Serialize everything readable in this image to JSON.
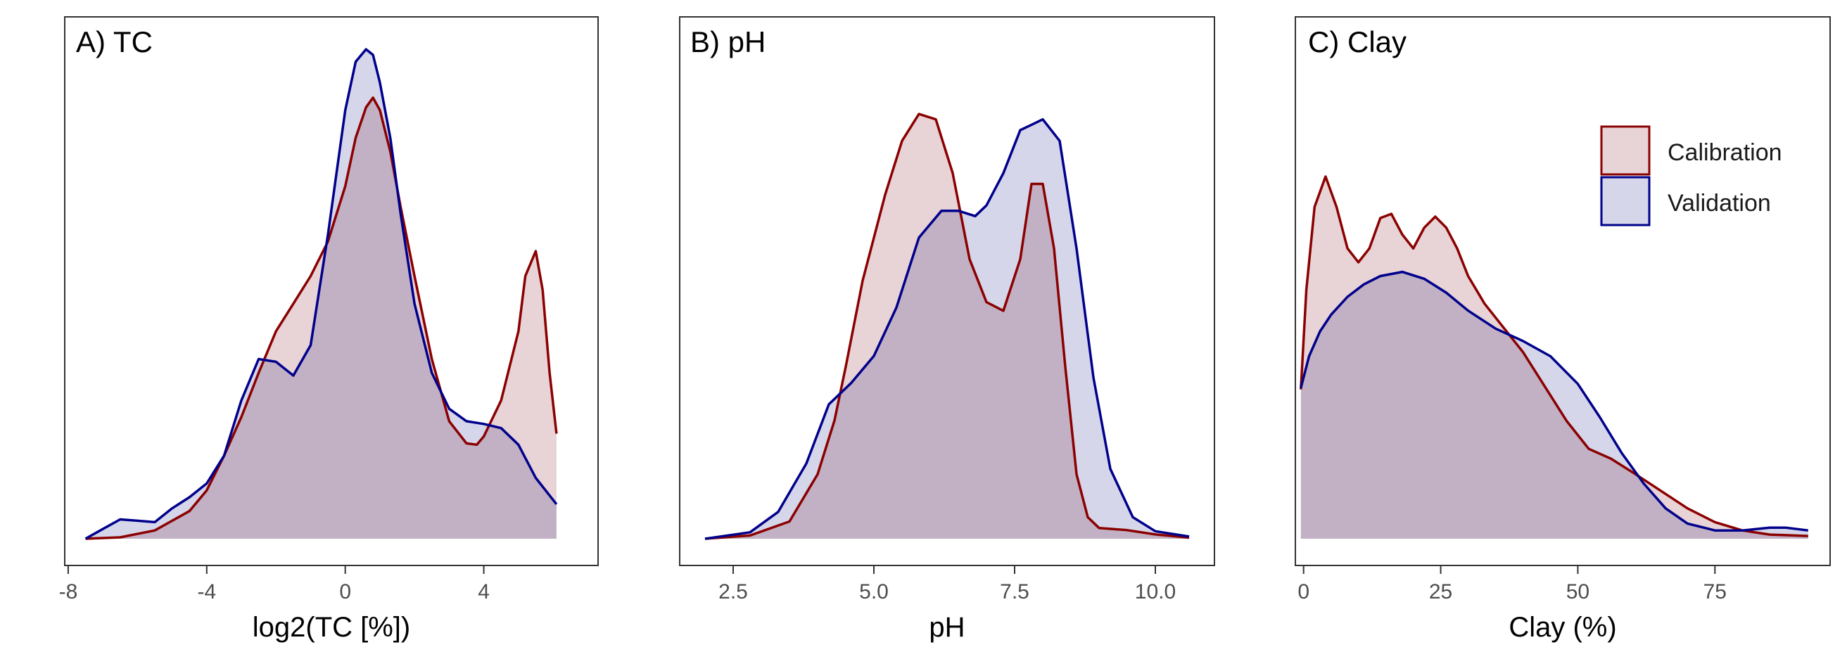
{
  "colors": {
    "calibration_line": "#8B0000",
    "calibration_fill": "#E8D3D6",
    "validation_line": "#00008B",
    "validation_fill": "#D5D6EA",
    "overlap_fill": "#C8B6CB",
    "panel_border": "#333333",
    "tick_text": "#4d4d4d"
  },
  "legend": {
    "placement": "top-right of panel C",
    "items": [
      {
        "label": "Calibration",
        "color_key": "calibration"
      },
      {
        "label": "Validation",
        "color_key": "validation"
      }
    ]
  },
  "chart_data": [
    {
      "type": "area",
      "title": "A) TC",
      "xlabel": "log2(TC [%])",
      "ylabel": "",
      "xlim": [
        -8.1,
        7.3
      ],
      "ylim": [
        0,
        0.35
      ],
      "xticks": [
        -8,
        -4,
        0,
        4
      ],
      "xtick_labels": [
        "-8",
        "-4",
        "0",
        "4"
      ],
      "grid": false,
      "series": [
        {
          "name": "Calibration",
          "x": [
            -7.5,
            -6.5,
            -5.5,
            -4.5,
            -4,
            -3.5,
            -3,
            -2.5,
            -2,
            -1.5,
            -1,
            -0.5,
            0,
            0.3,
            0.6,
            0.8,
            1,
            1.3,
            1.6,
            2,
            2.5,
            3,
            3.5,
            3.8,
            4,
            4.5,
            5,
            5.2,
            5.5,
            5.7,
            5.9,
            6.1
          ],
          "y": [
            0,
            0.001,
            0.006,
            0.02,
            0.035,
            0.06,
            0.088,
            0.12,
            0.15,
            0.17,
            0.19,
            0.215,
            0.255,
            0.29,
            0.312,
            0.319,
            0.31,
            0.28,
            0.24,
            0.19,
            0.13,
            0.085,
            0.069,
            0.068,
            0.074,
            0.1,
            0.15,
            0.19,
            0.208,
            0.18,
            0.12,
            0.076
          ]
        },
        {
          "name": "Validation",
          "x": [
            -7.5,
            -7,
            -6.5,
            -6,
            -5.5,
            -5,
            -4.5,
            -4,
            -3.5,
            -3,
            -2.5,
            -2,
            -1.5,
            -1,
            -0.5,
            0,
            0.3,
            0.6,
            0.8,
            1,
            1.3,
            1.6,
            2,
            2.5,
            3,
            3.5,
            4,
            4.5,
            5,
            5.5,
            6.1
          ],
          "y": [
            0,
            0.007,
            0.014,
            0.013,
            0.012,
            0.022,
            0.03,
            0.04,
            0.06,
            0.1,
            0.13,
            0.128,
            0.118,
            0.14,
            0.22,
            0.31,
            0.345,
            0.354,
            0.35,
            0.33,
            0.29,
            0.235,
            0.17,
            0.12,
            0.094,
            0.085,
            0.083,
            0.08,
            0.068,
            0.044,
            0.025
          ]
        }
      ]
    },
    {
      "type": "area",
      "title": "B) pH",
      "xlabel": "pH",
      "ylabel": "",
      "xlim": [
        1.55,
        11.05
      ],
      "ylim": [
        0,
        0.45
      ],
      "xticks": [
        2.5,
        5.0,
        7.5,
        10.0
      ],
      "xtick_labels": [
        "2.5",
        "5.0",
        "7.5",
        "10.0"
      ],
      "grid": false,
      "series": [
        {
          "name": "Calibration",
          "x": [
            2,
            2.8,
            3.5,
            4,
            4.3,
            4.5,
            4.8,
            5.2,
            5.5,
            5.8,
            6.1,
            6.4,
            6.7,
            7,
            7.3,
            7.6,
            7.8,
            8,
            8.2,
            8.4,
            8.6,
            8.8,
            9,
            9.5,
            10,
            10.6
          ],
          "y": [
            0,
            0.003,
            0.016,
            0.06,
            0.11,
            0.16,
            0.24,
            0.32,
            0.37,
            0.395,
            0.39,
            0.34,
            0.26,
            0.22,
            0.212,
            0.26,
            0.33,
            0.33,
            0.27,
            0.16,
            0.06,
            0.02,
            0.01,
            0.008,
            0.004,
            0.001
          ]
        },
        {
          "name": "Validation",
          "x": [
            2,
            2.8,
            3.3,
            3.8,
            4.2,
            4.6,
            5,
            5.4,
            5.8,
            6.2,
            6.5,
            6.8,
            7,
            7.3,
            7.6,
            7.8,
            8,
            8.3,
            8.6,
            8.9,
            9.2,
            9.6,
            10,
            10.6
          ],
          "y": [
            0,
            0.006,
            0.025,
            0.07,
            0.125,
            0.145,
            0.17,
            0.215,
            0.28,
            0.305,
            0.305,
            0.3,
            0.31,
            0.34,
            0.38,
            0.385,
            0.39,
            0.37,
            0.27,
            0.15,
            0.065,
            0.02,
            0.007,
            0.002
          ]
        }
      ]
    },
    {
      "type": "area",
      "title": "C) Clay",
      "xlabel": "Clay (%)",
      "ylabel": "",
      "xlim": [
        -1.5,
        96
      ],
      "ylim": [
        0,
        0.035
      ],
      "xticks": [
        0,
        25,
        50,
        75
      ],
      "xtick_labels": [
        "0",
        "25",
        "50",
        "75"
      ],
      "grid": false,
      "series": [
        {
          "name": "Calibration",
          "x": [
            -0.5,
            0.5,
            2,
            4,
            6,
            8,
            10,
            12,
            14,
            16,
            18,
            20,
            22,
            24,
            26,
            28,
            30,
            33,
            36,
            40,
            44,
            48,
            52,
            56,
            60,
            65,
            70,
            75,
            80,
            85,
            92
          ],
          "y": [
            0.0108,
            0.018,
            0.024,
            0.0262,
            0.024,
            0.021,
            0.02,
            0.021,
            0.0232,
            0.0235,
            0.022,
            0.021,
            0.0225,
            0.0233,
            0.0225,
            0.021,
            0.019,
            0.017,
            0.0155,
            0.0135,
            0.011,
            0.0085,
            0.0065,
            0.0058,
            0.0048,
            0.0035,
            0.0022,
            0.0012,
            0.0006,
            0.0003,
            0.0002
          ]
        },
        {
          "name": "Validation",
          "x": [
            -0.5,
            1,
            3,
            5,
            8,
            11,
            14,
            18,
            22,
            26,
            30,
            35,
            40,
            45,
            50,
            54,
            58,
            62,
            66,
            70,
            75,
            80,
            85,
            88,
            92
          ],
          "y": [
            0.0109,
            0.0132,
            0.015,
            0.0162,
            0.0175,
            0.0184,
            0.019,
            0.0193,
            0.0188,
            0.0178,
            0.0165,
            0.0152,
            0.0143,
            0.0132,
            0.0112,
            0.0088,
            0.0062,
            0.004,
            0.0022,
            0.0011,
            0.0006,
            0.0006,
            0.0008,
            0.0008,
            0.0006
          ]
        }
      ]
    }
  ]
}
